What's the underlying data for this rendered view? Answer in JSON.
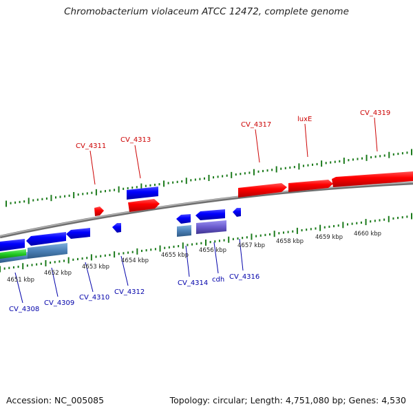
{
  "title": "Chromobacterium violaceum ATCC 12472, complete genome",
  "footer": {
    "accession": "Accession: NC_005085",
    "summary": "Topology: circular; Length: 4,751,080 bp; Genes: 4,530"
  },
  "scale_labels": [
    "4651 kbp",
    "4652 kbp",
    "4653 kbp",
    "4654 kbp",
    "4655 kbp",
    "4656 kbp",
    "4657 kbp",
    "4658 kbp",
    "4659 kbp",
    "4660 kbp"
  ],
  "forward_gene_labels": [
    "CV_4311",
    "CV_4313",
    "CV_4317",
    "luxE",
    "CV_4319"
  ],
  "reverse_gene_labels": [
    "CV_4308",
    "CV_4309",
    "CV_4310",
    "CV_4312",
    "CV_4314",
    "cdh",
    "CV_4316"
  ],
  "colors": {
    "forward_gene": "#ff0000",
    "forward_label": "#cc0000",
    "reverse_gene": "#0000ff",
    "reverse_label": "#0000aa",
    "rna_feature": "#4a7fb5",
    "misc_feature": "#6a5acd",
    "green_feature": "#22cc22",
    "backbone": "#8a8a8a",
    "tick": "#1a7a1a"
  }
}
